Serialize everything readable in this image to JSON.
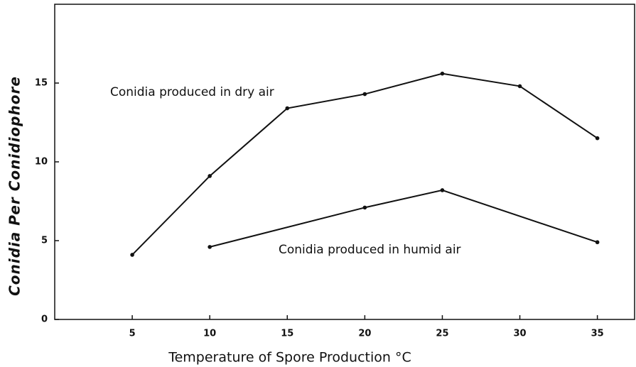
{
  "chart_data": {
    "type": "line",
    "x_label": "Temperature of Spore Production °C",
    "y_label": "Conidia Per Conidiophore",
    "annotations": [
      {
        "text": "Conidia produced in dry air"
      },
      {
        "text": "Conidia produced in humid air"
      }
    ],
    "series": [
      {
        "color": "#111111",
        "x": [
          5,
          10,
          15,
          20,
          25,
          30,
          35
        ],
        "values": [
          4.1,
          9.1,
          13.4,
          14.3,
          15.6,
          14.8,
          11.5
        ]
      },
      {
        "color": "#111111",
        "x": [
          10,
          20,
          25,
          35
        ],
        "values": [
          4.6,
          7.1,
          8.2,
          4.9
        ]
      }
    ],
    "xlim": [
      0,
      37.4
    ],
    "xticks": [
      5,
      10,
      15,
      20,
      25,
      30,
      35
    ],
    "ylim": [
      0,
      20
    ],
    "yticks": [
      0,
      5,
      10,
      15
    ],
    "grid": false
  }
}
